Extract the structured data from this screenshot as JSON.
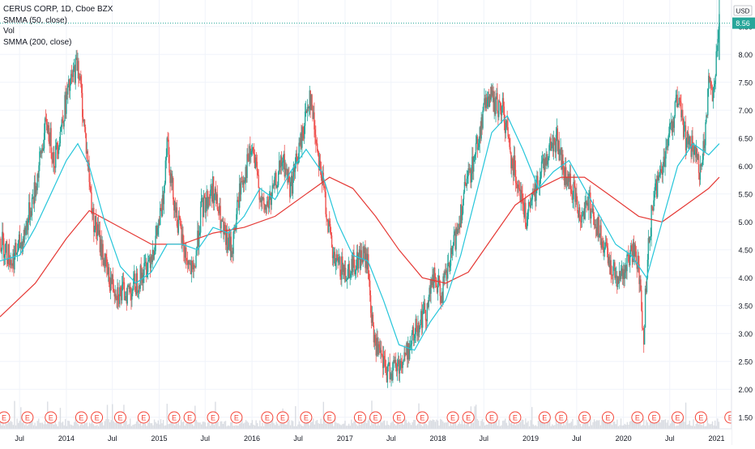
{
  "legend": {
    "symbol": "CERUS CORP, 1D, Cboe BZX",
    "ind1": "SMMA (50, close)",
    "ind2": "Vol",
    "ind3": "SMMA (200, close)"
  },
  "currency": "USD",
  "last_price_label": "8.56",
  "earnings_marker": "E",
  "colors": {
    "up": "#26a69a",
    "down": "#ef5350",
    "smma50": "#26c6da",
    "smma200": "#e53935",
    "price_line": "#26a69a",
    "grid": "#f0f3fa",
    "axis_text": "#131722",
    "volume": "#d1d4dc"
  },
  "chart_data": {
    "type": "candlestick",
    "title": "CERUS CORP, 1D, Cboe BZX",
    "ylabel": "USD",
    "ylim": [
      1.25,
      9.5
    ],
    "xlim": [
      "2013-04-15",
      "2021-03-01"
    ],
    "grid": true,
    "y_ticks": [
      "1.50",
      "2.00",
      "2.50",
      "3.00",
      "3.50",
      "4.00",
      "4.50",
      "5.00",
      "5.50",
      "6.00",
      "6.50",
      "7.00",
      "7.50",
      "8.00",
      "8.50",
      "9.00",
      "9.50"
    ],
    "x_ticks": [
      {
        "label": "Jul",
        "date": "2013-07-01"
      },
      {
        "label": "2014",
        "date": "2014-01-01"
      },
      {
        "label": "Jul",
        "date": "2014-07-01"
      },
      {
        "label": "2015",
        "date": "2015-01-01"
      },
      {
        "label": "Jul",
        "date": "2015-07-01"
      },
      {
        "label": "2016",
        "date": "2016-01-01"
      },
      {
        "label": "Jul",
        "date": "2016-07-01"
      },
      {
        "label": "2017",
        "date": "2017-01-01"
      },
      {
        "label": "Jul",
        "date": "2017-07-01"
      },
      {
        "label": "2018",
        "date": "2018-01-01"
      },
      {
        "label": "Jul",
        "date": "2018-07-01"
      },
      {
        "label": "2019",
        "date": "2019-01-01"
      },
      {
        "label": "Jul",
        "date": "2019-07-01"
      },
      {
        "label": "2020",
        "date": "2020-01-01"
      },
      {
        "label": "Jul",
        "date": "2020-07-01"
      },
      {
        "label": "2021",
        "date": "2021-01-01"
      }
    ],
    "price": [
      [
        "2013-04-15",
        4.7
      ],
      [
        "2013-06-01",
        4.3
      ],
      [
        "2013-07-15",
        4.7
      ],
      [
        "2013-09-01",
        5.6
      ],
      [
        "2013-10-15",
        6.8
      ],
      [
        "2013-11-15",
        6.1
      ],
      [
        "2014-01-01",
        7.2
      ],
      [
        "2014-02-15",
        7.9
      ],
      [
        "2014-03-15",
        6.6
      ],
      [
        "2014-04-15",
        5.1
      ],
      [
        "2014-05-15",
        4.6
      ],
      [
        "2014-06-15",
        4.0
      ],
      [
        "2014-08-01",
        3.7
      ],
      [
        "2014-09-15",
        3.8
      ],
      [
        "2014-11-01",
        4.1
      ],
      [
        "2014-12-15",
        4.6
      ],
      [
        "2015-01-15",
        5.3
      ],
      [
        "2015-02-01",
        6.6
      ],
      [
        "2015-02-15",
        5.8
      ],
      [
        "2015-03-15",
        5.0
      ],
      [
        "2015-04-15",
        4.4
      ],
      [
        "2015-05-15",
        4.0
      ],
      [
        "2015-06-15",
        5.2
      ],
      [
        "2015-08-01",
        5.6
      ],
      [
        "2015-09-15",
        4.7
      ],
      [
        "2015-10-15",
        4.5
      ],
      [
        "2015-11-15",
        5.6
      ],
      [
        "2016-01-01",
        6.3
      ],
      [
        "2016-02-15",
        5.2
      ],
      [
        "2016-03-15",
        5.4
      ],
      [
        "2016-05-01",
        6.1
      ],
      [
        "2016-06-01",
        5.6
      ],
      [
        "2016-07-15",
        6.5
      ],
      [
        "2016-08-15",
        7.3
      ],
      [
        "2016-09-15",
        6.3
      ],
      [
        "2016-10-15",
        5.4
      ],
      [
        "2016-11-15",
        4.3
      ],
      [
        "2017-01-01",
        4.1
      ],
      [
        "2017-02-15",
        4.3
      ],
      [
        "2017-03-15",
        4.4
      ],
      [
        "2017-04-01",
        4.2
      ],
      [
        "2017-04-20",
        3.0
      ],
      [
        "2017-05-15",
        2.6
      ],
      [
        "2017-06-15",
        2.3
      ],
      [
        "2017-07-15",
        2.4
      ],
      [
        "2017-08-15",
        2.5
      ],
      [
        "2017-09-15",
        2.8
      ],
      [
        "2017-10-15",
        3.2
      ],
      [
        "2017-11-15",
        3.4
      ],
      [
        "2017-12-15",
        4.0
      ],
      [
        "2018-01-15",
        3.7
      ],
      [
        "2018-02-15",
        4.2
      ],
      [
        "2018-03-15",
        4.8
      ],
      [
        "2018-04-15",
        5.5
      ],
      [
        "2018-05-15",
        6.0
      ],
      [
        "2018-06-15",
        6.6
      ],
      [
        "2018-07-15",
        7.3
      ],
      [
        "2018-08-15",
        7.1
      ],
      [
        "2018-09-15",
        7.0
      ],
      [
        "2018-10-15",
        6.2
      ],
      [
        "2018-11-15",
        5.7
      ],
      [
        "2018-12-15",
        5.0
      ],
      [
        "2019-01-15",
        5.5
      ],
      [
        "2019-02-15",
        6.0
      ],
      [
        "2019-03-15",
        6.3
      ],
      [
        "2019-04-15",
        6.5
      ],
      [
        "2019-05-15",
        5.8
      ],
      [
        "2019-06-15",
        5.6
      ],
      [
        "2019-07-15",
        5.1
      ],
      [
        "2019-08-15",
        5.4
      ],
      [
        "2019-09-15",
        5.0
      ],
      [
        "2019-10-15",
        4.5
      ],
      [
        "2019-11-15",
        4.2
      ],
      [
        "2019-12-15",
        4.0
      ],
      [
        "2020-01-15",
        4.2
      ],
      [
        "2020-02-15",
        4.6
      ],
      [
        "2020-03-10",
        3.7
      ],
      [
        "2020-03-20",
        2.9
      ],
      [
        "2020-04-05",
        4.5
      ],
      [
        "2020-05-01",
        5.5
      ],
      [
        "2020-06-01",
        6.0
      ],
      [
        "2020-07-01",
        6.6
      ],
      [
        "2020-08-01",
        7.2
      ],
      [
        "2020-09-01",
        6.5
      ],
      [
        "2020-10-01",
        6.3
      ],
      [
        "2020-11-01",
        5.8
      ],
      [
        "2020-11-20",
        6.7
      ],
      [
        "2020-12-01",
        7.6
      ],
      [
        "2020-12-20",
        7.3
      ],
      [
        "2021-01-05",
        8.2
      ],
      [
        "2021-01-12",
        8.56
      ]
    ],
    "smma50": [
      [
        "2013-04-15",
        4.3
      ],
      [
        "2013-07-01",
        4.4
      ],
      [
        "2013-09-01",
        4.9
      ],
      [
        "2013-11-01",
        5.5
      ],
      [
        "2014-01-01",
        6.1
      ],
      [
        "2014-02-15",
        6.4
      ],
      [
        "2014-04-01",
        6.0
      ],
      [
        "2014-06-01",
        5.0
      ],
      [
        "2014-08-01",
        4.2
      ],
      [
        "2014-10-01",
        3.9
      ],
      [
        "2014-12-01",
        4.1
      ],
      [
        "2015-02-01",
        4.6
      ],
      [
        "2015-04-01",
        4.6
      ],
      [
        "2015-06-01",
        4.5
      ],
      [
        "2015-08-01",
        4.9
      ],
      [
        "2015-10-01",
        4.8
      ],
      [
        "2015-12-01",
        5.1
      ],
      [
        "2016-02-01",
        5.6
      ],
      [
        "2016-04-01",
        5.4
      ],
      [
        "2016-06-01",
        5.9
      ],
      [
        "2016-08-01",
        6.3
      ],
      [
        "2016-10-01",
        5.9
      ],
      [
        "2016-12-01",
        5.0
      ],
      [
        "2017-02-01",
        4.4
      ],
      [
        "2017-04-01",
        4.3
      ],
      [
        "2017-06-01",
        3.6
      ],
      [
        "2017-08-01",
        2.8
      ],
      [
        "2017-10-01",
        2.7
      ],
      [
        "2017-12-01",
        3.2
      ],
      [
        "2018-02-01",
        3.6
      ],
      [
        "2018-04-01",
        4.4
      ],
      [
        "2018-06-01",
        5.5
      ],
      [
        "2018-08-01",
        6.6
      ],
      [
        "2018-10-01",
        6.9
      ],
      [
        "2018-12-01",
        6.3
      ],
      [
        "2019-02-01",
        5.6
      ],
      [
        "2019-04-01",
        5.9
      ],
      [
        "2019-06-01",
        6.1
      ],
      [
        "2019-08-01",
        5.6
      ],
      [
        "2019-10-01",
        5.1
      ],
      [
        "2019-12-01",
        4.6
      ],
      [
        "2020-02-01",
        4.4
      ],
      [
        "2020-04-01",
        4.0
      ],
      [
        "2020-06-01",
        5.0
      ],
      [
        "2020-08-01",
        6.0
      ],
      [
        "2020-10-01",
        6.4
      ],
      [
        "2020-12-01",
        6.2
      ],
      [
        "2021-01-12",
        6.4
      ]
    ],
    "smma200": [
      [
        "2013-04-15",
        3.3
      ],
      [
        "2013-09-01",
        3.9
      ],
      [
        "2014-01-01",
        4.7
      ],
      [
        "2014-04-01",
        5.2
      ],
      [
        "2014-08-01",
        4.9
      ],
      [
        "2014-12-01",
        4.6
      ],
      [
        "2015-04-01",
        4.6
      ],
      [
        "2015-08-01",
        4.8
      ],
      [
        "2015-12-01",
        4.9
      ],
      [
        "2016-04-01",
        5.1
      ],
      [
        "2016-08-01",
        5.5
      ],
      [
        "2016-11-01",
        5.8
      ],
      [
        "2017-02-01",
        5.6
      ],
      [
        "2017-05-01",
        5.1
      ],
      [
        "2017-08-01",
        4.5
      ],
      [
        "2017-11-01",
        4.0
      ],
      [
        "2018-02-01",
        3.9
      ],
      [
        "2018-05-01",
        4.1
      ],
      [
        "2018-08-01",
        4.7
      ],
      [
        "2018-11-01",
        5.3
      ],
      [
        "2019-02-01",
        5.6
      ],
      [
        "2019-05-01",
        5.8
      ],
      [
        "2019-08-01",
        5.8
      ],
      [
        "2019-11-01",
        5.5
      ],
      [
        "2020-03-01",
        5.1
      ],
      [
        "2020-06-01",
        5.0
      ],
      [
        "2020-09-01",
        5.3
      ],
      [
        "2020-12-01",
        5.6
      ],
      [
        "2021-01-12",
        5.8
      ]
    ],
    "earnings_dates": [
      "2013-05-01",
      "2013-08-01",
      "2013-11-01",
      "2014-03-01",
      "2014-05-01",
      "2014-08-01",
      "2014-11-01",
      "2015-03-01",
      "2015-05-01",
      "2015-08-01",
      "2015-11-01",
      "2016-03-01",
      "2016-05-01",
      "2016-08-01",
      "2016-11-01",
      "2017-03-01",
      "2017-05-01",
      "2017-08-01",
      "2017-11-01",
      "2018-03-01",
      "2018-05-01",
      "2018-08-01",
      "2018-11-01",
      "2019-02-25",
      "2019-05-01",
      "2019-08-01",
      "2019-11-01",
      "2020-02-25",
      "2020-05-01",
      "2020-08-01",
      "2020-11-01",
      "2021-02-25"
    ]
  }
}
